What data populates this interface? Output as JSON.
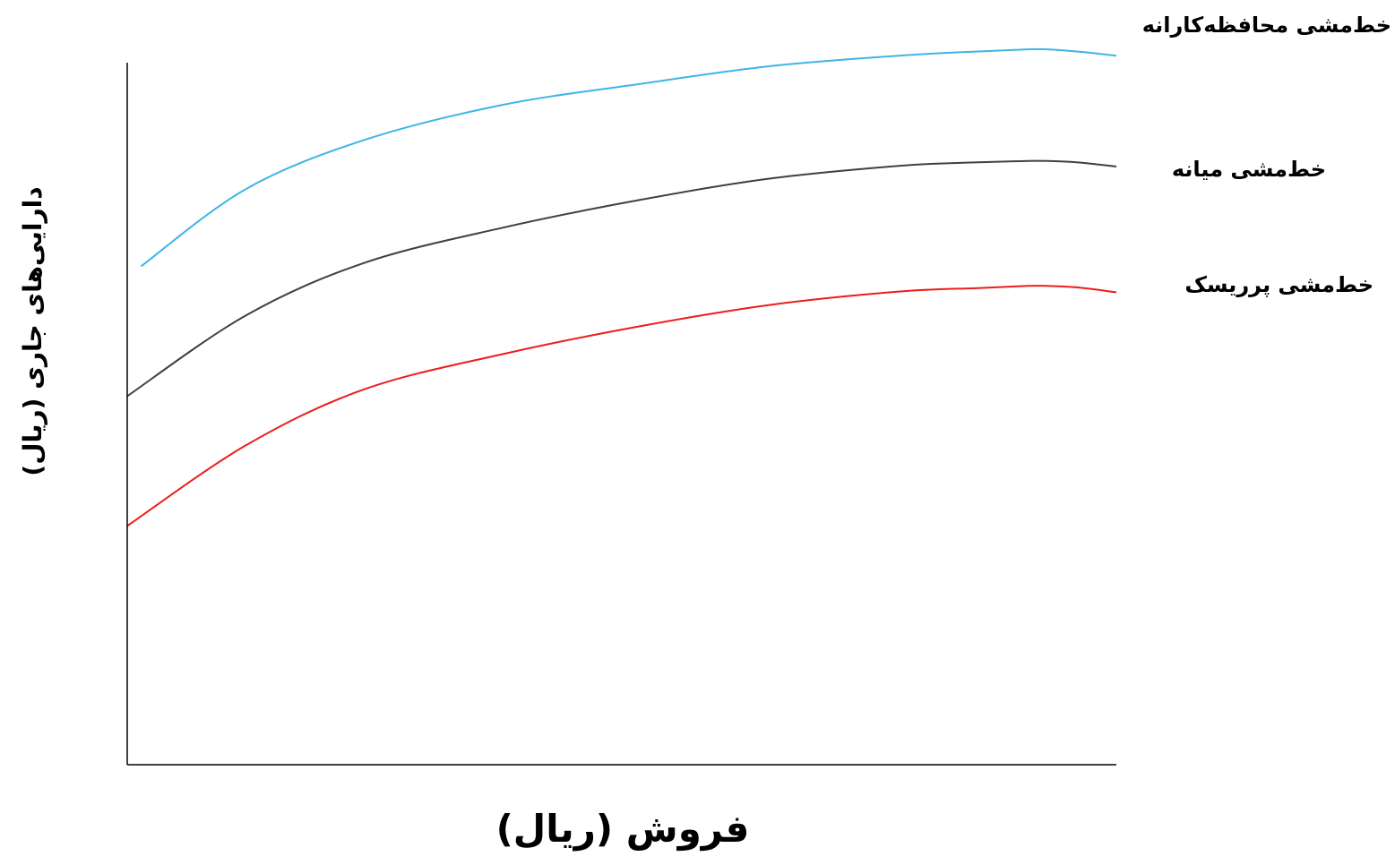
{
  "chart_data": {
    "type": "line",
    "title": "",
    "xlabel": "فروش (ریال)",
    "ylabel": "دارایی‌های جاری (ریال)",
    "xlim": [
      0,
      100
    ],
    "ylim": [
      0,
      100
    ],
    "grid": false,
    "legend": "none",
    "series": [
      {
        "name": "خط‌مشی محافظه‌کارانه",
        "color": "#3fb4e6",
        "x": [
          1.4,
          12,
          24,
          38,
          52,
          65,
          78,
          86,
          91,
          93,
          96,
          100
        ],
        "y": [
          71,
          82,
          89,
          94,
          97,
          99.5,
          101,
          101.6,
          101.9,
          101.9,
          101.6,
          101
        ]
      },
      {
        "name": "خط‌مشی میانه",
        "color": "#404040",
        "x": [
          0,
          12,
          24,
          38,
          52,
          65,
          78,
          86,
          91,
          93,
          96,
          100
        ],
        "y": [
          52.5,
          64,
          71.5,
          76.5,
          80.5,
          83.5,
          85.3,
          85.8,
          86,
          86,
          85.8,
          85.2
        ]
      },
      {
        "name": "خط‌مشی پرریسک",
        "color": "#ee1c1c",
        "x": [
          0,
          12,
          24,
          38,
          52,
          65,
          78,
          86,
          91,
          93,
          96,
          100
        ],
        "y": [
          34,
          45.5,
          53.5,
          58.5,
          62.5,
          65.5,
          67.4,
          67.9,
          68.2,
          68.2,
          68,
          67.3
        ]
      }
    ]
  }
}
